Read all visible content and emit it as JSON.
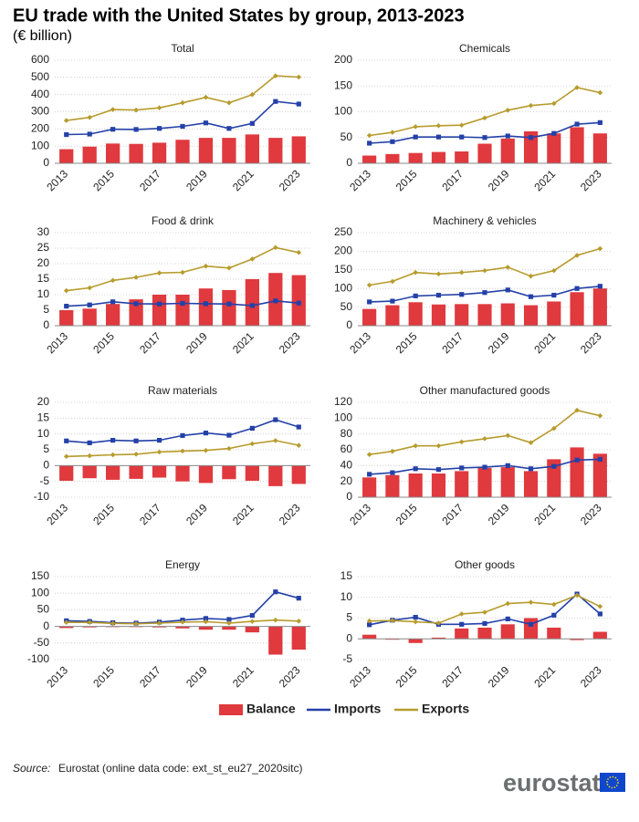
{
  "title": "EU trade with the United States by group, 2013-2023",
  "subtitle": "(€ billion)",
  "legend": {
    "position": "bottom",
    "items": [
      {
        "name": "Balance",
        "color": "#e0393e",
        "kind": "bar"
      },
      {
        "name": "Imports",
        "color": "#2441a8",
        "kind": "line"
      },
      {
        "name": "Exports",
        "color": "#b79b2c",
        "kind": "line"
      }
    ]
  },
  "source_label": "Source:",
  "source_text": "Eurostat (online data code: ext_st_eu27_2020sitc)",
  "logo": "eurostat",
  "chart_data": [
    {
      "type": "bar-line",
      "title": "Total",
      "categories": [
        "2013",
        null,
        "2015",
        null,
        "2017",
        null,
        "2019",
        null,
        "2021",
        null,
        "2023"
      ],
      "ylim": [
        0,
        600
      ],
      "yticks": [
        0,
        100,
        200,
        300,
        400,
        500,
        600
      ],
      "grid": true,
      "series": [
        {
          "values": [
            82,
            97,
            115,
            113,
            120,
            137,
            148,
            148,
            168,
            148,
            157
          ]
        },
        {
          "values": [
            167,
            170,
            198,
            197,
            203,
            215,
            235,
            203,
            232,
            360,
            345
          ]
        },
        {
          "values": [
            249,
            267,
            313,
            310,
            323,
            352,
            384,
            352,
            400,
            509,
            502
          ]
        }
      ]
    },
    {
      "type": "bar-line",
      "title": "Chemicals",
      "categories": [
        "2013",
        null,
        "2015",
        null,
        "2017",
        null,
        "2019",
        null,
        "2021",
        null,
        "2023"
      ],
      "ylim": [
        0,
        200
      ],
      "yticks": [
        0,
        50,
        100,
        150,
        200
      ],
      "grid": true,
      "series": [
        {
          "values": [
            15,
            18,
            20,
            22,
            23,
            38,
            48,
            62,
            58,
            70,
            58
          ]
        },
        {
          "values": [
            39,
            42,
            51,
            51,
            51,
            50,
            53,
            50,
            58,
            76,
            79
          ]
        },
        {
          "values": [
            54,
            60,
            71,
            73,
            74,
            88,
            103,
            112,
            116,
            147,
            137
          ]
        }
      ]
    },
    {
      "type": "bar-line",
      "title": "Food & drink",
      "categories": [
        "2013",
        null,
        "2015",
        null,
        "2017",
        null,
        "2019",
        null,
        "2021",
        null,
        "2023"
      ],
      "ylim": [
        0,
        30
      ],
      "yticks": [
        0,
        5,
        10,
        15,
        20,
        25,
        30
      ],
      "grid": true,
      "series": [
        {
          "values": [
            5,
            5.5,
            7,
            8.5,
            10,
            10,
            12,
            11.5,
            15,
            17,
            16.3
          ]
        },
        {
          "values": [
            6.3,
            6.7,
            7.7,
            7.1,
            7,
            7.2,
            7.1,
            7,
            6.5,
            8,
            7.3
          ]
        },
        {
          "values": [
            11.3,
            12.2,
            14.6,
            15.6,
            17,
            17.2,
            19.2,
            18.6,
            21.5,
            25.2,
            23.6
          ]
        }
      ]
    },
    {
      "type": "bar-line",
      "title": "Machinery & vehicles",
      "categories": [
        "2013",
        null,
        "2015",
        null,
        "2017",
        null,
        "2019",
        null,
        "2021",
        null,
        "2023"
      ],
      "ylim": [
        0,
        250
      ],
      "yticks": [
        0,
        50,
        100,
        150,
        200,
        250
      ],
      "grid": true,
      "series": [
        {
          "values": [
            45,
            55,
            63,
            57,
            58,
            58,
            60,
            55,
            65,
            90,
            100
          ]
        },
        {
          "values": [
            64,
            66,
            80,
            82,
            84,
            89,
            96,
            78,
            82,
            100,
            106
          ]
        },
        {
          "values": [
            109,
            119,
            143,
            139,
            143,
            148,
            157,
            133,
            148,
            189,
            207
          ]
        }
      ]
    },
    {
      "type": "bar-line",
      "title": "Raw materials",
      "categories": [
        "2013",
        null,
        "2015",
        null,
        "2017",
        null,
        "2019",
        null,
        "2021",
        null,
        "2023"
      ],
      "ylim": [
        -10,
        20
      ],
      "yticks": [
        -10,
        -5,
        0,
        5,
        10,
        15,
        20
      ],
      "grid": true,
      "series": [
        {
          "values": [
            -4.8,
            -4,
            -4.5,
            -4.2,
            -3.8,
            -5,
            -5.5,
            -4.3,
            -4.8,
            -6.5,
            -5.8
          ]
        },
        {
          "values": [
            7.8,
            7.2,
            8,
            7.8,
            8,
            9.5,
            10.3,
            9.6,
            11.8,
            14.5,
            12.2
          ]
        },
        {
          "values": [
            2.9,
            3.1,
            3.4,
            3.6,
            4.3,
            4.6,
            4.8,
            5.4,
            6.9,
            7.9,
            6.4
          ]
        }
      ]
    },
    {
      "type": "bar-line",
      "title": "Other manufactured goods",
      "categories": [
        "2013",
        null,
        "2015",
        null,
        "2017",
        null,
        "2019",
        null,
        "2021",
        null,
        "2023"
      ],
      "ylim": [
        0,
        120
      ],
      "yticks": [
        0,
        20,
        40,
        60,
        80,
        100,
        120
      ],
      "grid": true,
      "series": [
        {
          "values": [
            25,
            28,
            30,
            30,
            33,
            37,
            38,
            33,
            48,
            63,
            55
          ]
        },
        {
          "values": [
            29,
            31,
            36,
            35,
            37,
            38,
            40,
            36,
            39,
            47,
            48
          ]
        },
        {
          "values": [
            54,
            58,
            65,
            65,
            70,
            74,
            78,
            69,
            87,
            110,
            103
          ]
        }
      ]
    },
    {
      "type": "bar-line",
      "title": "Energy",
      "categories": [
        "2013",
        null,
        "2015",
        null,
        "2017",
        null,
        "2019",
        null,
        "2021",
        null,
        "2023"
      ],
      "ylim": [
        -100,
        150
      ],
      "yticks": [
        -100,
        -50,
        0,
        50,
        100,
        150
      ],
      "grid": true,
      "series": [
        {
          "values": [
            -5,
            -3,
            -2,
            -2,
            -3,
            -6,
            -10,
            -10,
            -18,
            -85,
            -70
          ]
        },
        {
          "values": [
            17,
            15,
            11,
            10,
            13,
            19,
            24,
            21,
            33,
            104,
            85
          ]
        },
        {
          "values": [
            12,
            12,
            9,
            8,
            10,
            13,
            14,
            10,
            15,
            19,
            16
          ]
        }
      ]
    },
    {
      "type": "bar-line",
      "title": "Other goods",
      "categories": [
        "2013",
        null,
        "2015",
        null,
        "2017",
        null,
        "2019",
        null,
        "2021",
        null,
        "2023"
      ],
      "ylim": [
        -5,
        15
      ],
      "yticks": [
        -5,
        0,
        5,
        10,
        15
      ],
      "grid": true,
      "series": [
        {
          "values": [
            1,
            -0.2,
            -1,
            0.3,
            2.5,
            2.7,
            3.5,
            5,
            2.7,
            -0.3,
            1.7
          ]
        },
        {
          "values": [
            3.4,
            4.5,
            5.2,
            3.5,
            3.5,
            3.7,
            4.8,
            3.5,
            5.7,
            10.8,
            6
          ]
        },
        {
          "values": [
            4.3,
            4.4,
            4.1,
            3.8,
            6,
            6.4,
            8.5,
            8.8,
            8.3,
            10.5,
            7.8
          ]
        }
      ]
    }
  ]
}
